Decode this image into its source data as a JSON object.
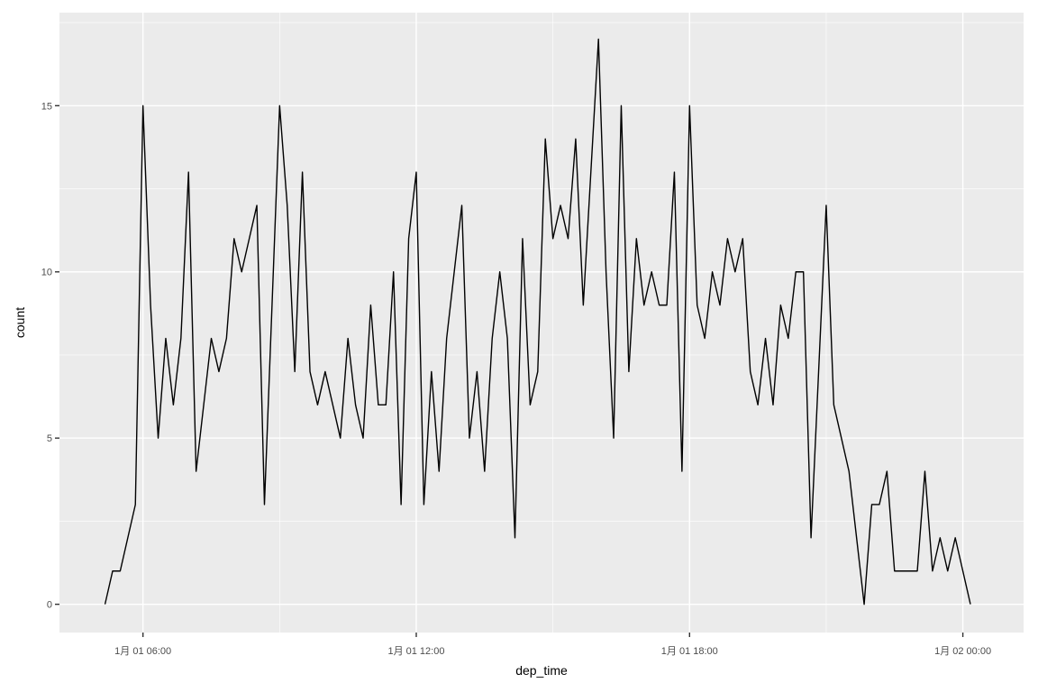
{
  "chart_data": {
    "type": "line",
    "title": "",
    "xlabel": "dep_time",
    "ylabel": "count",
    "x_unit": "datetime",
    "x_ticks": [
      {
        "label": "1月 01 06:00",
        "value": "2013-01-01T06:00"
      },
      {
        "label": "1月 01 12:00",
        "value": "2013-01-01T12:00"
      },
      {
        "label": "1月 01 18:00",
        "value": "2013-01-01T18:00"
      },
      {
        "label": "1月 02 00:00",
        "value": "2013-01-02T00:00"
      }
    ],
    "y_ticks": [
      0,
      5,
      10,
      15
    ],
    "xlim": [
      "2013-01-01T04:10",
      "2013-01-02T01:20"
    ],
    "ylim": [
      -0.85,
      17.8
    ],
    "grid": true,
    "series": [
      {
        "color": "#000000",
        "x": [
          "2013-01-01T05:10",
          "2013-01-01T05:20",
          "2013-01-01T05:30",
          "2013-01-01T05:40",
          "2013-01-01T05:50",
          "2013-01-01T06:00",
          "2013-01-01T06:10",
          "2013-01-01T06:20",
          "2013-01-01T06:30",
          "2013-01-01T06:40",
          "2013-01-01T06:50",
          "2013-01-01T07:00",
          "2013-01-01T07:10",
          "2013-01-01T07:20",
          "2013-01-01T07:30",
          "2013-01-01T07:40",
          "2013-01-01T07:50",
          "2013-01-01T08:00",
          "2013-01-01T08:10",
          "2013-01-01T08:20",
          "2013-01-01T08:30",
          "2013-01-01T08:40",
          "2013-01-01T08:50",
          "2013-01-01T09:00",
          "2013-01-01T09:10",
          "2013-01-01T09:20",
          "2013-01-01T09:30",
          "2013-01-01T09:40",
          "2013-01-01T09:50",
          "2013-01-01T10:00",
          "2013-01-01T10:10",
          "2013-01-01T10:20",
          "2013-01-01T10:30",
          "2013-01-01T10:40",
          "2013-01-01T10:50",
          "2013-01-01T11:00",
          "2013-01-01T11:10",
          "2013-01-01T11:20",
          "2013-01-01T11:30",
          "2013-01-01T11:40",
          "2013-01-01T11:50",
          "2013-01-01T12:00",
          "2013-01-01T12:10",
          "2013-01-01T12:20",
          "2013-01-01T12:30",
          "2013-01-01T12:40",
          "2013-01-01T12:50",
          "2013-01-01T13:00",
          "2013-01-01T13:10",
          "2013-01-01T13:20",
          "2013-01-01T13:30",
          "2013-01-01T13:40",
          "2013-01-01T13:50",
          "2013-01-01T14:00",
          "2013-01-01T14:10",
          "2013-01-01T14:20",
          "2013-01-01T14:30",
          "2013-01-01T14:40",
          "2013-01-01T14:50",
          "2013-01-01T15:00",
          "2013-01-01T15:10",
          "2013-01-01T15:20",
          "2013-01-01T15:30",
          "2013-01-01T15:40",
          "2013-01-01T15:50",
          "2013-01-01T16:00",
          "2013-01-01T16:10",
          "2013-01-01T16:20",
          "2013-01-01T16:30",
          "2013-01-01T16:40",
          "2013-01-01T16:50",
          "2013-01-01T17:00",
          "2013-01-01T17:10",
          "2013-01-01T17:20",
          "2013-01-01T17:30",
          "2013-01-01T17:40",
          "2013-01-01T17:50",
          "2013-01-01T18:00",
          "2013-01-01T18:10",
          "2013-01-01T18:20",
          "2013-01-01T18:30",
          "2013-01-01T18:40",
          "2013-01-01T18:50",
          "2013-01-01T19:00",
          "2013-01-01T19:10",
          "2013-01-01T19:20",
          "2013-01-01T19:30",
          "2013-01-01T19:40",
          "2013-01-01T19:50",
          "2013-01-01T20:00",
          "2013-01-01T20:10",
          "2013-01-01T20:20",
          "2013-01-01T20:30",
          "2013-01-01T20:40",
          "2013-01-01T20:50",
          "2013-01-01T21:00",
          "2013-01-01T21:10",
          "2013-01-01T21:20",
          "2013-01-01T21:30",
          "2013-01-01T21:40",
          "2013-01-01T21:50",
          "2013-01-01T22:00",
          "2013-01-01T22:10",
          "2013-01-01T22:20",
          "2013-01-01T22:30",
          "2013-01-01T22:40",
          "2013-01-01T22:50",
          "2013-01-01T23:00",
          "2013-01-01T23:10",
          "2013-01-01T23:20",
          "2013-01-01T23:30",
          "2013-01-01T23:40",
          "2013-01-01T23:50",
          "2013-01-02T00:00",
          "2013-01-02T00:10"
        ],
        "y": [
          0,
          1,
          1,
          2,
          3,
          15,
          9,
          5,
          8,
          6,
          8,
          13,
          4,
          6,
          8,
          7,
          8,
          11,
          10,
          11,
          12,
          3,
          9,
          15,
          12,
          7,
          13,
          7,
          6,
          7,
          6,
          5,
          8,
          6,
          5,
          9,
          6,
          6,
          10,
          3,
          11,
          13,
          3,
          7,
          4,
          8,
          10,
          12,
          5,
          7,
          4,
          8,
          10,
          8,
          2,
          11,
          6,
          7,
          14,
          11,
          12,
          11,
          14,
          9,
          13,
          17,
          10,
          5,
          15,
          7,
          11,
          9,
          10,
          9,
          9,
          13,
          4,
          15,
          9,
          8,
          10,
          9,
          11,
          10,
          11,
          7,
          6,
          8,
          6,
          9,
          8,
          10,
          10,
          2,
          7,
          12,
          6,
          5,
          4,
          2,
          0,
          3,
          3,
          4,
          1,
          1,
          1,
          1,
          4,
          1,
          2,
          1,
          2,
          1,
          0
        ]
      }
    ]
  }
}
